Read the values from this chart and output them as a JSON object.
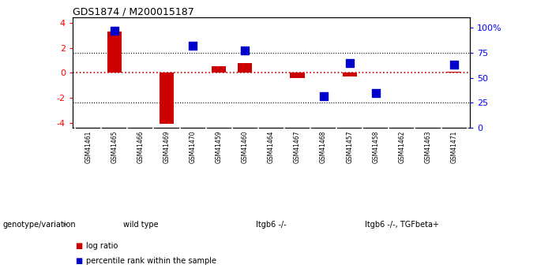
{
  "title": "GDS1874 / M200015187",
  "samples": [
    "GSM41461",
    "GSM41465",
    "GSM41466",
    "GSM41469",
    "GSM41470",
    "GSM41459",
    "GSM41460",
    "GSM41464",
    "GSM41467",
    "GSM41468",
    "GSM41457",
    "GSM41458",
    "GSM41462",
    "GSM41463",
    "GSM41471"
  ],
  "log_ratio": [
    0.0,
    3.3,
    0.0,
    -4.1,
    0.0,
    0.5,
    0.8,
    0.0,
    -0.4,
    0.0,
    -0.3,
    0.0,
    0.0,
    0.0,
    0.1
  ],
  "percentile_rank": [
    null,
    97,
    null,
    null,
    82,
    null,
    77,
    null,
    null,
    32,
    65,
    35,
    null,
    null,
    63
  ],
  "groups": [
    {
      "label": "wild type",
      "start": 0,
      "end": 4,
      "color": "#d4f5c4"
    },
    {
      "label": "Itgb6 -/-",
      "start": 5,
      "end": 9,
      "color": "#b0ee90"
    },
    {
      "label": "Itgb6 -/-, TGFbeta+",
      "start": 10,
      "end": 14,
      "color": "#88dd66"
    }
  ],
  "ylim_left": [
    -4.4,
    4.4
  ],
  "ylim_right": [
    0,
    110
  ],
  "yticks_left": [
    -4,
    -2,
    0,
    2,
    4
  ],
  "yticks_right": [
    0,
    25,
    50,
    75,
    100
  ],
  "ytick_labels_right": [
    "0",
    "25",
    "50",
    "75",
    "100%"
  ],
  "bar_color_red": "#cc0000",
  "bar_color_blue": "#0000cc",
  "zero_line_color": "#cc0000",
  "bg_color": "#ffffff",
  "plot_bg": "#ffffff",
  "legend_red_label": "log ratio",
  "legend_blue_label": "percentile rank within the sample",
  "genotype_label": "genotype/variation",
  "bar_width": 0.55,
  "percentile_marker_size": 45,
  "sample_box_color": "#c8c8c8",
  "sample_box_border": "#888888"
}
